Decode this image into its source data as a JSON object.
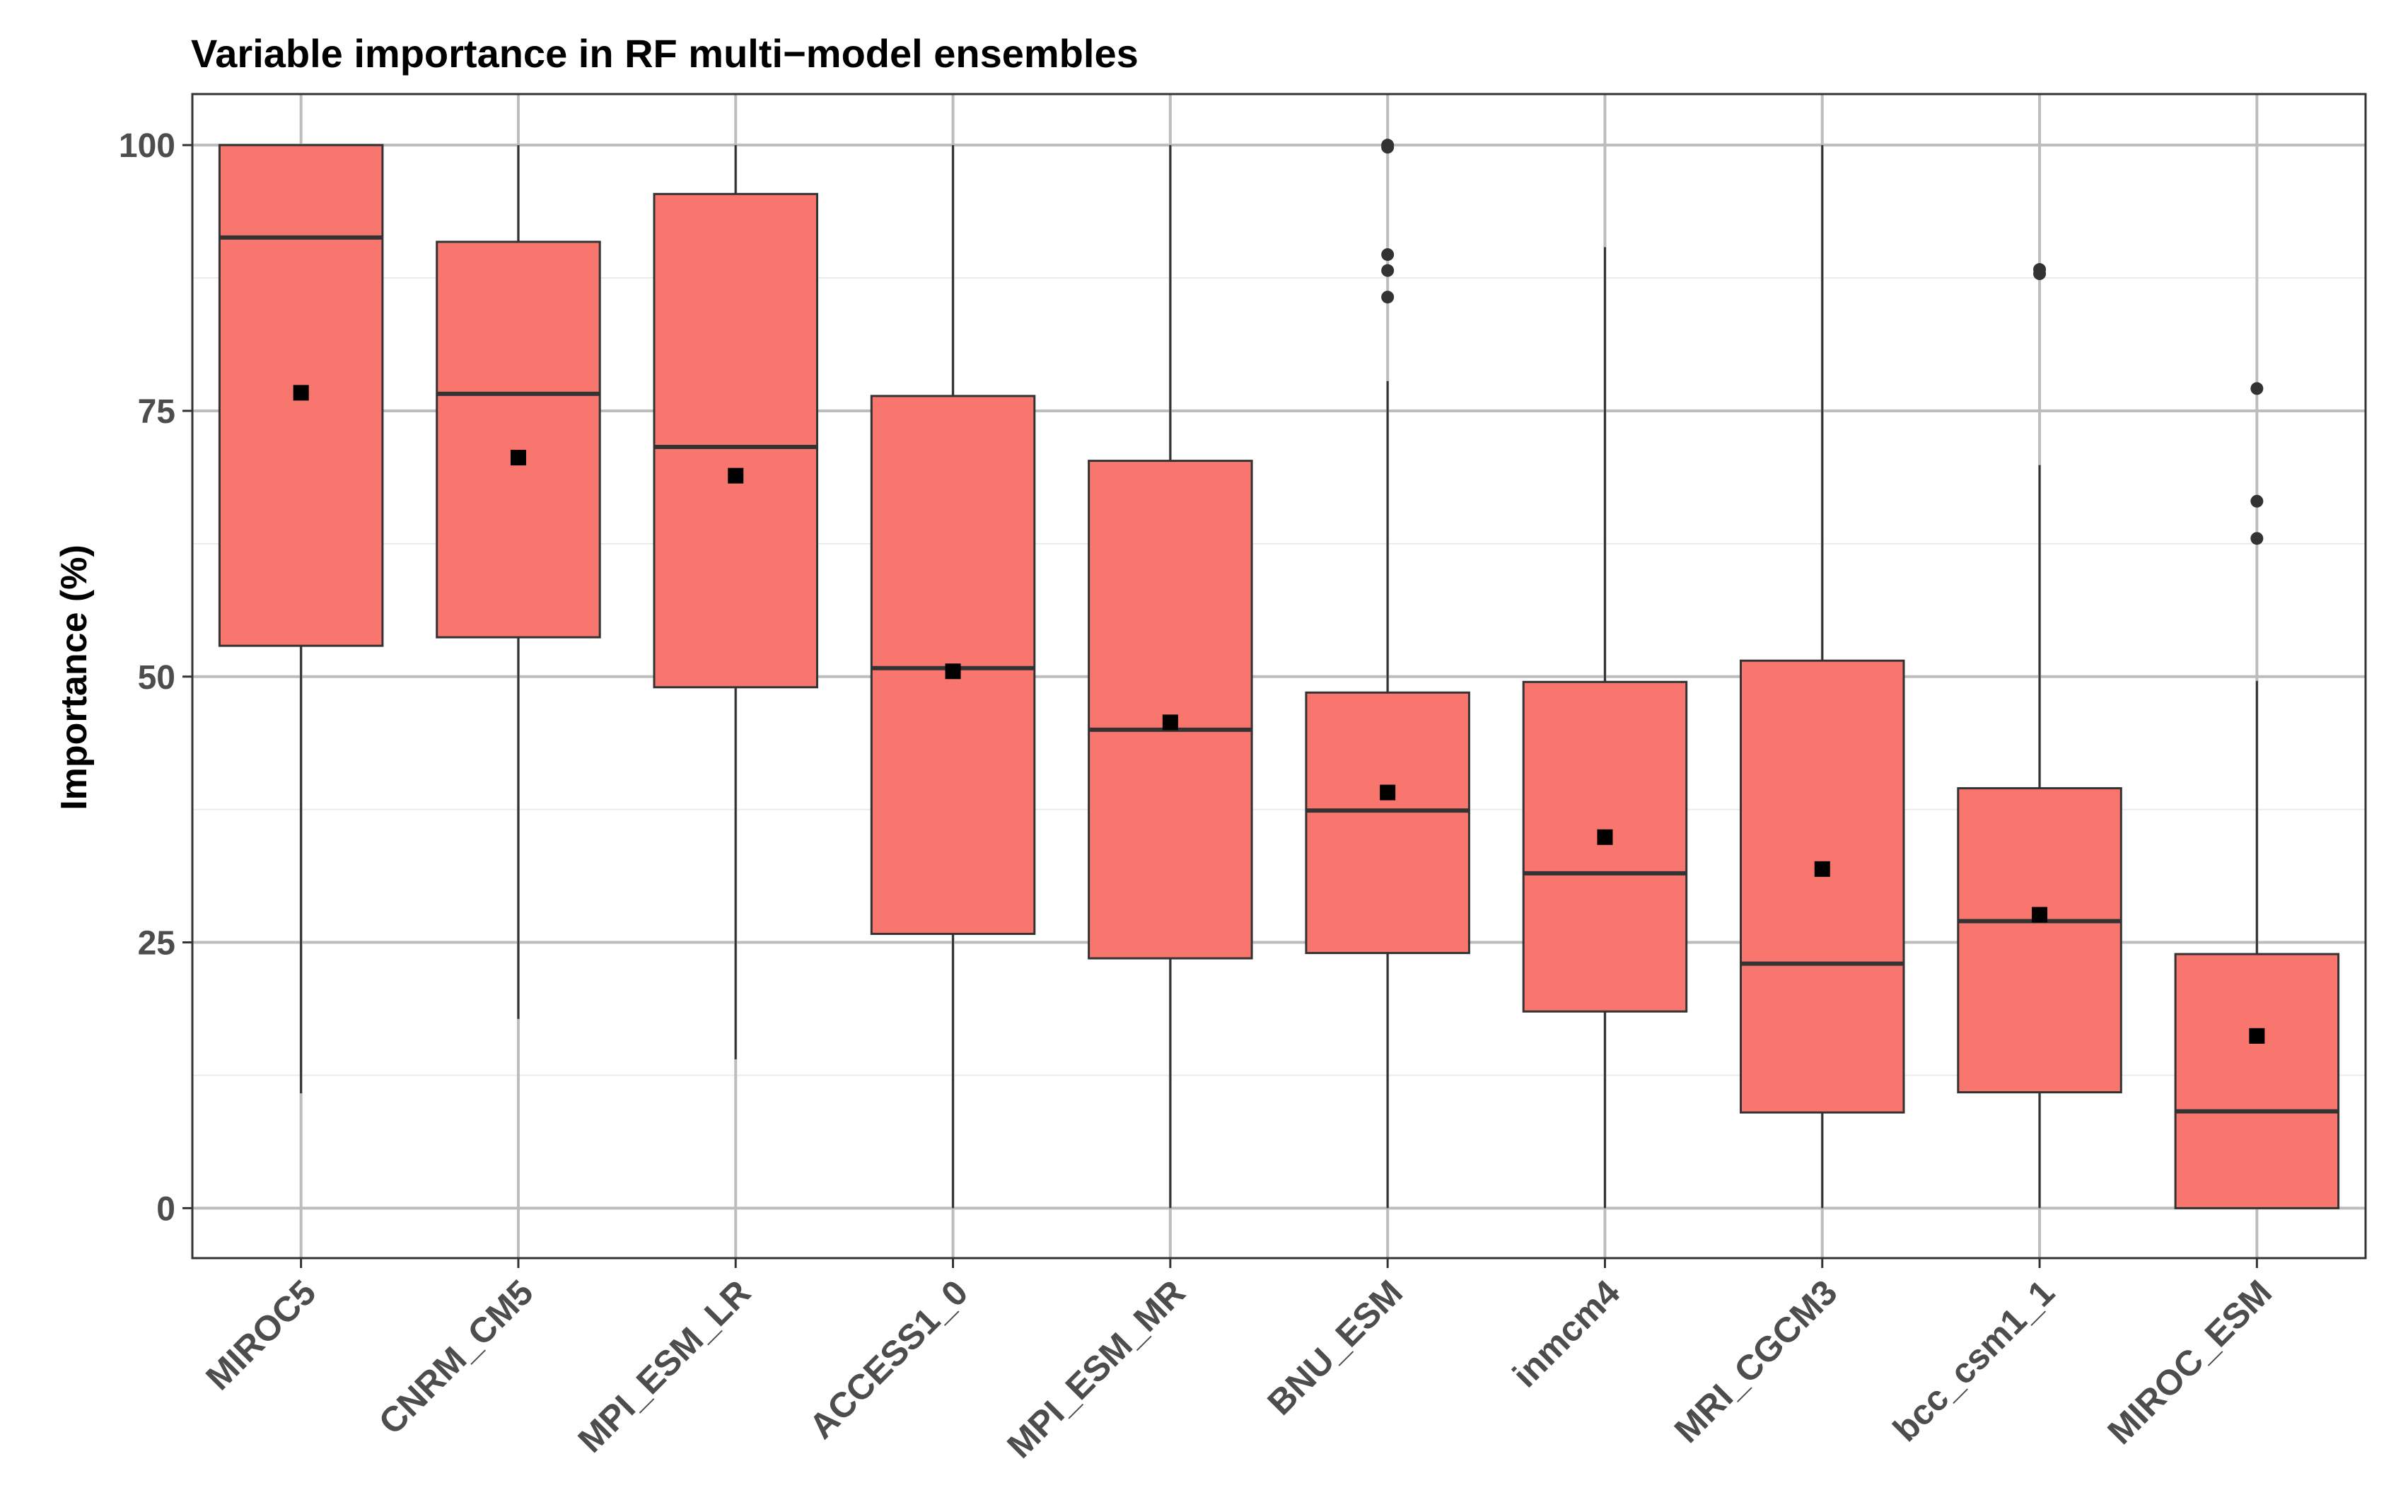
{
  "chart_data": {
    "type": "boxplot",
    "title": "Variable importance in RF multi−model ensembles",
    "xlabel": "",
    "ylabel": "Importance (%)",
    "ylim": [
      -4.7,
      104.8
    ],
    "yticks": [
      0,
      25,
      50,
      75,
      100
    ],
    "grid": true,
    "box_color": "#F8766D",
    "line_color": "#333333",
    "categories": [
      "MIROC5",
      "CNRM_CM5",
      "MPI_ESM_LR",
      "ACCESS1_0",
      "MPI_ESM_MR",
      "BNU_ESM",
      "inmcm4",
      "MRI_CGCM3",
      "bcc_csm1_1",
      "MIROC_ESM"
    ],
    "boxes": [
      {
        "name": "MIROC5",
        "min": 10.8,
        "q1": 52.9,
        "median": 91.3,
        "q3": 100.0,
        "max": 100.0,
        "mean": 76.7,
        "outliers": []
      },
      {
        "name": "CNRM_CM5",
        "min": 17.8,
        "q1": 53.7,
        "median": 76.6,
        "q3": 90.9,
        "max": 100.0,
        "mean": 70.6,
        "outliers": []
      },
      {
        "name": "MPI_ESM_LR",
        "min": 14.0,
        "q1": 49.0,
        "median": 71.6,
        "q3": 95.4,
        "max": 100.0,
        "mean": 68.9,
        "outliers": []
      },
      {
        "name": "ACCESS1_0",
        "min": 0.0,
        "q1": 25.8,
        "median": 50.8,
        "q3": 76.4,
        "max": 100.0,
        "mean": 50.5,
        "outliers": []
      },
      {
        "name": "MPI_ESM_MR",
        "min": 0.0,
        "q1": 23.5,
        "median": 45.0,
        "q3": 70.3,
        "max": 100.0,
        "mean": 45.7,
        "outliers": []
      },
      {
        "name": "BNU_ESM",
        "min": 0.0,
        "q1": 24.0,
        "median": 37.4,
        "q3": 48.5,
        "max": 77.8,
        "mean": 39.1,
        "outliers": [
          85.7,
          88.2,
          89.7,
          99.8,
          100.0
        ]
      },
      {
        "name": "inmcm4",
        "min": 0.0,
        "q1": 18.5,
        "median": 31.5,
        "q3": 49.5,
        "max": 90.4,
        "mean": 34.9,
        "outliers": []
      },
      {
        "name": "MRI_CGCM3",
        "min": 0.0,
        "q1": 9.0,
        "median": 23.0,
        "q3": 51.5,
        "max": 100.0,
        "mean": 31.9,
        "outliers": []
      },
      {
        "name": "bcc_csm1_1",
        "min": 0.0,
        "q1": 10.9,
        "median": 27.0,
        "q3": 39.5,
        "max": 69.9,
        "mean": 27.6,
        "outliers": [
          87.9,
          88.3
        ]
      },
      {
        "name": "MIROC_ESM",
        "min": 0.0,
        "q1": 0.0,
        "median": 9.1,
        "q3": 23.9,
        "max": 49.6,
        "mean": 16.2,
        "outliers": [
          63.0,
          66.5,
          77.1
        ]
      }
    ]
  }
}
